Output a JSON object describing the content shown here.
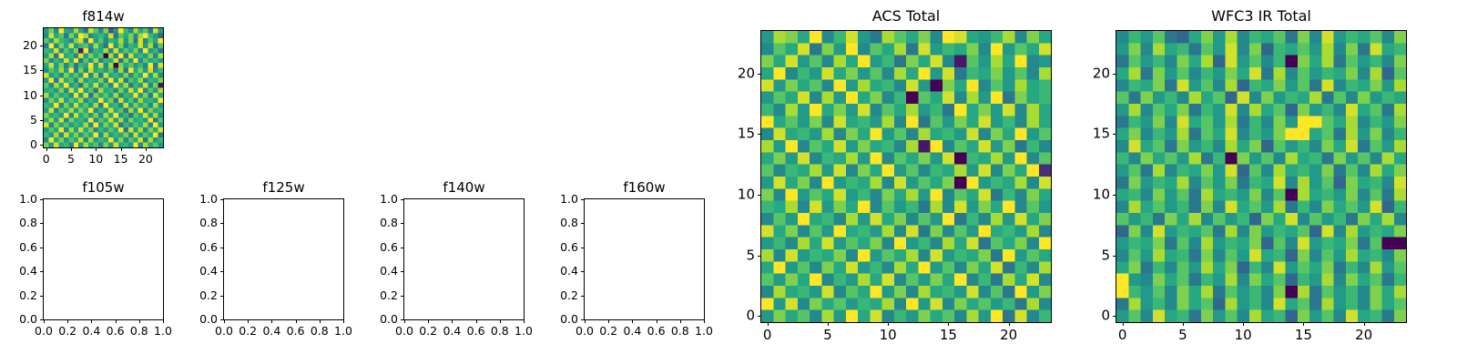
{
  "figure": {
    "background": "#ffffff",
    "text_color": "#000000",
    "colormap": {
      "name": "viridis",
      "stops": [
        "#440154",
        "#472d7b",
        "#3b528b",
        "#2c728e",
        "#21918c",
        "#28ae80",
        "#5ec962",
        "#addc30",
        "#fde725"
      ]
    }
  },
  "chart_data": [
    {
      "id": "f814w",
      "type": "heatmap",
      "title": "f814w",
      "xlim": [
        -0.5,
        23.5
      ],
      "ylim": [
        -0.5,
        23.5
      ],
      "xtick_values": [
        0,
        5,
        10,
        15,
        20
      ],
      "xtick_labels": [
        "0",
        "5",
        "10",
        "15",
        "20"
      ],
      "ytick_values": [
        0,
        5,
        10,
        15,
        20
      ],
      "ytick_labels": [
        "0",
        "5",
        "10",
        "15",
        "20"
      ],
      "shape": [
        24,
        24
      ],
      "value_scale": [
        0,
        15
      ],
      "rows_hex": [
        "8c7f98d96eb7c48fa7d9b6e8",
        "7e9b6c8fd79a8e6b9c7dfa85",
        "b8da97ce6f8b7a9d8c6e7b9f",
        "6f7c9e8ab7d96f8c7a9e8d6b",
        "a9e7b8c1f6a9d7e8b9c7f8a6",
        "8d6f9a7e8c9b0d7f6e9a8c7d",
        "c7a8e9f6b8d7a9e6c8f7b9a8",
        "9e8c7b6a9f8e7d0c9b8a7f6e",
        "7b9d8f6c7e9a8b7d6f9c8e7a",
        "e8a7c9b8f7d6e9a8c7b9f8d7",
        "8f6e9b7d8a9c7f8e6b9d7a9c",
        "b7d9f8a6c9e8b7f9d6a8e7c1",
        "9a8c7e9f8b6d9a7c8e9f7b8d",
        "d8b9a7f8e6c9b8d7a9f8c6e9",
        "7c9e8b9d7a8f9c6e8b7d9a8f",
        "a9f7c8e9b8d6f9a7e8c9b7d8",
        "8e7b9d8c9f7a8e9b6d8f7c9a",
        "c9a8f7e9b8c7d9f8a6b9e8d7",
        "9d8e7c9a8f7b9e8d7c9a8f6b",
        "e7c9b8a9d7f8c9e6a8b9d7f8",
        "8b9f7d8e9c7a8b9f6e8d7c9e",
        "a8d7e9c8b9f7d8a9c7e8b9f6",
        "7f9c8b9e7d8a9f8c7b9e6d8a",
        "c8e9a7f8d9b7c8e9a8f7d9b8"
      ]
    },
    {
      "id": "f105w",
      "type": "empty",
      "title": "f105w",
      "xlim": [
        0,
        1
      ],
      "ylim": [
        0,
        1
      ],
      "xtick_values": [
        0,
        0.2,
        0.4,
        0.6,
        0.8,
        1.0
      ],
      "xtick_labels": [
        "0.0",
        "0.2",
        "0.4",
        "0.6",
        "0.8",
        "1.0"
      ],
      "ytick_values": [
        0,
        0.2,
        0.4,
        0.6,
        0.8,
        1.0
      ],
      "ytick_labels": [
        "0.0",
        "0.2",
        "0.4",
        "0.6",
        "0.8",
        "1.0"
      ]
    },
    {
      "id": "f125w",
      "type": "empty",
      "title": "f125w",
      "xlim": [
        0,
        1
      ],
      "ylim": [
        0,
        1
      ],
      "xtick_values": [
        0,
        0.2,
        0.4,
        0.6,
        0.8,
        1.0
      ],
      "xtick_labels": [
        "0.0",
        "0.2",
        "0.4",
        "0.6",
        "0.8",
        "1.0"
      ],
      "ytick_values": [
        0,
        0.2,
        0.4,
        0.6,
        0.8,
        1.0
      ],
      "ytick_labels": [
        "0.0",
        "0.2",
        "0.4",
        "0.6",
        "0.8",
        "1.0"
      ]
    },
    {
      "id": "f140w",
      "type": "empty",
      "title": "f140w",
      "xlim": [
        0,
        1
      ],
      "ylim": [
        0,
        1
      ],
      "xtick_values": [
        0,
        0.2,
        0.4,
        0.6,
        0.8,
        1.0
      ],
      "xtick_labels": [
        "0.0",
        "0.2",
        "0.4",
        "0.6",
        "0.8",
        "1.0"
      ],
      "ytick_values": [
        0,
        0.2,
        0.4,
        0.6,
        0.8,
        1.0
      ],
      "ytick_labels": [
        "0.0",
        "0.2",
        "0.4",
        "0.6",
        "0.8",
        "1.0"
      ]
    },
    {
      "id": "f160w",
      "type": "empty",
      "title": "f160w",
      "xlim": [
        0,
        1
      ],
      "ylim": [
        0,
        1
      ],
      "xtick_values": [
        0,
        0.2,
        0.4,
        0.6,
        0.8,
        1.0
      ],
      "xtick_labels": [
        "0.0",
        "0.2",
        "0.4",
        "0.6",
        "0.8",
        "1.0"
      ],
      "ytick_values": [
        0,
        0.2,
        0.4,
        0.6,
        0.8,
        1.0
      ],
      "ytick_labels": [
        "0.0",
        "0.2",
        "0.4",
        "0.6",
        "0.8",
        "1.0"
      ]
    },
    {
      "id": "acs-total",
      "type": "heatmap",
      "title": "ACS Total",
      "xlim": [
        -0.5,
        23.5
      ],
      "ylim": [
        -0.5,
        23.5
      ],
      "xtick_values": [
        0,
        5,
        10,
        15,
        20
      ],
      "xtick_labels": [
        "0",
        "5",
        "10",
        "15",
        "20"
      ],
      "ytick_values": [
        0,
        5,
        10,
        15,
        20
      ],
      "ytick_labels": [
        "0",
        "5",
        "10",
        "15",
        "20"
      ],
      "shape": [
        24,
        24
      ],
      "value_scale": [
        0,
        15
      ],
      "rows_hex": [
        "8dc9f7ae86db9c7fe98ad7c9",
        "7b9e6c8f7b9d6e8a9c7f8b9e",
        "c9e8b7d9f8a6c9e71b8d9f78",
        "9f7a8e9c8b7d9f8e6a9c8b7d",
        "e8c9b7f8d9a7e80c9f7b8d9a",
        "8b9e7d8f9c7a0b9e7d8f6c9a",
        "a7d8f9c8e7b9d8a6f9c8e7d9",
        "f9b8c7e9a8d7f6b8c9e8a7d9",
        "7e9a8d7c9f8b7d9a8e7c9f8b",
        "d8f7b9e8c9a7d1f7b9e8c6a7",
        "9c8e7a9d8f7b9c8e0a9d8f7b",
        "b7a9d8e7c9f8b7a9d8e7c9f2",
        "8e9c7f8a9d7e8b9c0f8a9d7e",
        "c7f8b9e8a7c9d8f7b9e6a7c9",
        "a9d7e8c9f7b8a6d7e8c9f7b8",
        "7b8f9a7d8e9c7b8f6a7d8e9c",
        "e9c7b8f9a8d7e6c7b8f9a8d7",
        "8a7d9e8b9c7f8a7d9e6b9c7f",
        "d7e8a9c7f8b9d7e8a9c6f8b9",
        "9f8b7c9e8a7d9f8b7c9e6a7d",
        "b8c9f7a8d9e7b8c9f7a6d9e7",
        "7d9a8e7b9f8c7d9a8e7b6f8c",
        "f8e7c9b8a9d7f8e7c9b8a6d7",
        "8c9b7d8f9e7a8c9b7d8f6e7a"
      ]
    },
    {
      "id": "wfc3-ir-total",
      "type": "heatmap",
      "title": "WFC3 IR Total",
      "xlim": [
        -0.5,
        23.5
      ],
      "ylim": [
        -0.5,
        23.5
      ],
      "xtick_values": [
        0,
        5,
        10,
        15,
        20
      ],
      "xtick_labels": [
        "0",
        "5",
        "10",
        "15",
        "20"
      ],
      "ytick_values": [
        0,
        5,
        10,
        15,
        20
      ],
      "ytick_labels": [
        "0",
        "5",
        "10",
        "15",
        "20"
      ],
      "shape": [
        24,
        24
      ],
      "value_scale": [
        0,
        15
      ],
      "rows_hex": [
        "7a8b659c8d7a9b6c7e8a9b7c",
        "8c7d9a6b8e7c5a9b8d7c6e9a",
        "6b8a7c9d5e8b7a0c9d6b8a7c",
        "9d6c8b7a8c9e6d7b8a9c7d5b",
        "7a9c6e8b7d5a9c8b6e7a9c8d",
        "b6c8a7d9b5e7c8a9d6b7c8a9",
        "8d7b9c6a8e7d9b5c8a7e9b6d",
        "6a8c7e9b8d6a7c8ffb9d7a8c",
        "9c7a8d6b9e7a8cff9b6d8c7a",
        "7e9b6c8a7d9c5b8a7c9e6b8d",
        "a7c9b8d6a0c8b7d9a6c8b7d9",
        "8b6d7a9c8e5b7d9a8c6b7d9c",
        "6c8a9d7b8c6a9e7d8b5c9a7e",
        "9a7c8b6d9a8c7b0d9a8c7b6d",
        "7d9b8a6c7e9b8d6a7c9b8e5a",
        "b8a6c9d7b8a5c9e7b8a6c9d7",
        "5c7e8a9b6d7c8a9b5e7d8a9c",
        "8a9c6b7d8a9c5b7e8a9c6b00",
        "7b8d9a6c7b8e9a5c7b8d9a7c",
        "9c6a7b8d9c5a7e8b9c6a7d8b",
        "f87c9b6a8d7c9b5a8d7c9b6a",
        "fa8b7c9d6b8a7c0d6b8a7c9d",
        "6d8a7c9b5d8a7e9b6d8a7c9b",
        "8b7e9a6c8b7d9a5c8b7e9a6c"
      ]
    }
  ]
}
